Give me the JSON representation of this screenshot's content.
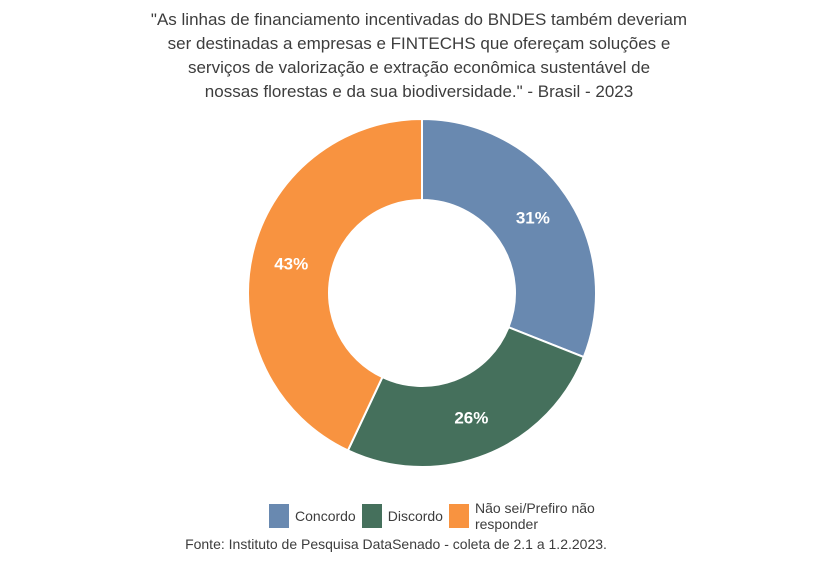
{
  "page": {
    "background": "#FFFFFF",
    "text_color": "#3D3D3D"
  },
  "chart_data": {
    "type": "pie",
    "subtype": "donut",
    "title": "\"As linhas de financiamento incentivadas do BNDES também deveriam ser destinadas a empresas e FINTECHS que ofereçam soluções e serviços de valorização e extração econômica sustentável de nossas florestas e da sua biodiversidade.\" - Brasil - 2023",
    "title_lines": [
      "\"As linhas de financiamento incentivadas do BNDES também deveriam",
      "ser destinadas a empresas e FINTECHS que ofereçam soluções e",
      "serviços de valorização e extração econômica sustentável de",
      "nossas florestas e da sua biodiversidade.\" - Brasil - 2023"
    ],
    "start_angle_deg": 0,
    "direction": "clockwise",
    "slices": [
      {
        "label": "Concordo",
        "value": 31,
        "display": "31%",
        "color": "#6989B0"
      },
      {
        "label": "Discordo",
        "value": 26,
        "display": "26%",
        "color": "#45705C"
      },
      {
        "label": "Não sei/Prefiro não responder",
        "value": 43,
        "display": "43%",
        "color": "#F89340"
      }
    ],
    "slice_label_color": "#FFFFFF",
    "legend_position": "bottom",
    "source": "Fonte: Instituto de Pesquisa DataSenado - coleta de 2.1 a 1.2.2023."
  }
}
